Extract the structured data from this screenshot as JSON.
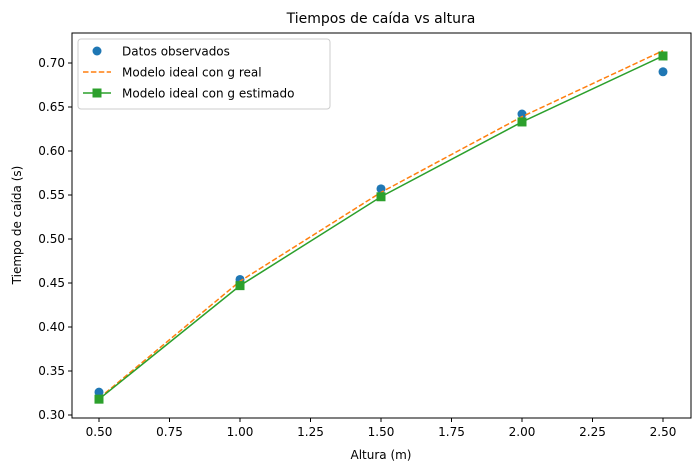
{
  "chart_data": {
    "type": "line",
    "title": "Tiempos de caída vs altura",
    "xlabel": "Altura (m)",
    "ylabel": "Tiempo de caída (s)",
    "xlim": [
      0.4,
      2.6
    ],
    "ylim": [
      0.298,
      0.733
    ],
    "xticks": [
      0.5,
      0.75,
      1.0,
      1.25,
      1.5,
      1.75,
      2.0,
      2.25,
      2.5
    ],
    "xtick_labels": [
      "0.50",
      "0.75",
      "1.00",
      "1.25",
      "1.50",
      "1.75",
      "2.00",
      "2.25",
      "2.50"
    ],
    "yticks": [
      0.3,
      0.35,
      0.4,
      0.45,
      0.5,
      0.55,
      0.6,
      0.65,
      0.7
    ],
    "ytick_labels": [
      "0.30",
      "0.35",
      "0.40",
      "0.45",
      "0.50",
      "0.55",
      "0.60",
      "0.65",
      "0.70"
    ],
    "grid": false,
    "legend_position": "upper left",
    "x": [
      0.5,
      1.0,
      1.5,
      2.0,
      2.5
    ],
    "series": [
      {
        "name": "Datos observados",
        "style": "markers",
        "marker": "circle",
        "color": "#1f77b4",
        "values": [
          0.326,
          0.454,
          0.557,
          0.642,
          0.69
        ]
      },
      {
        "name": "Modelo ideal con g real",
        "style": "dashed",
        "marker": "none",
        "color": "#ff7f0e",
        "values": [
          0.319,
          0.452,
          0.553,
          0.639,
          0.714
        ]
      },
      {
        "name": "Modelo ideal con g estimado",
        "style": "solid",
        "marker": "square",
        "color": "#2ca02c",
        "values": [
          0.318,
          0.447,
          0.548,
          0.633,
          0.708
        ]
      }
    ]
  }
}
